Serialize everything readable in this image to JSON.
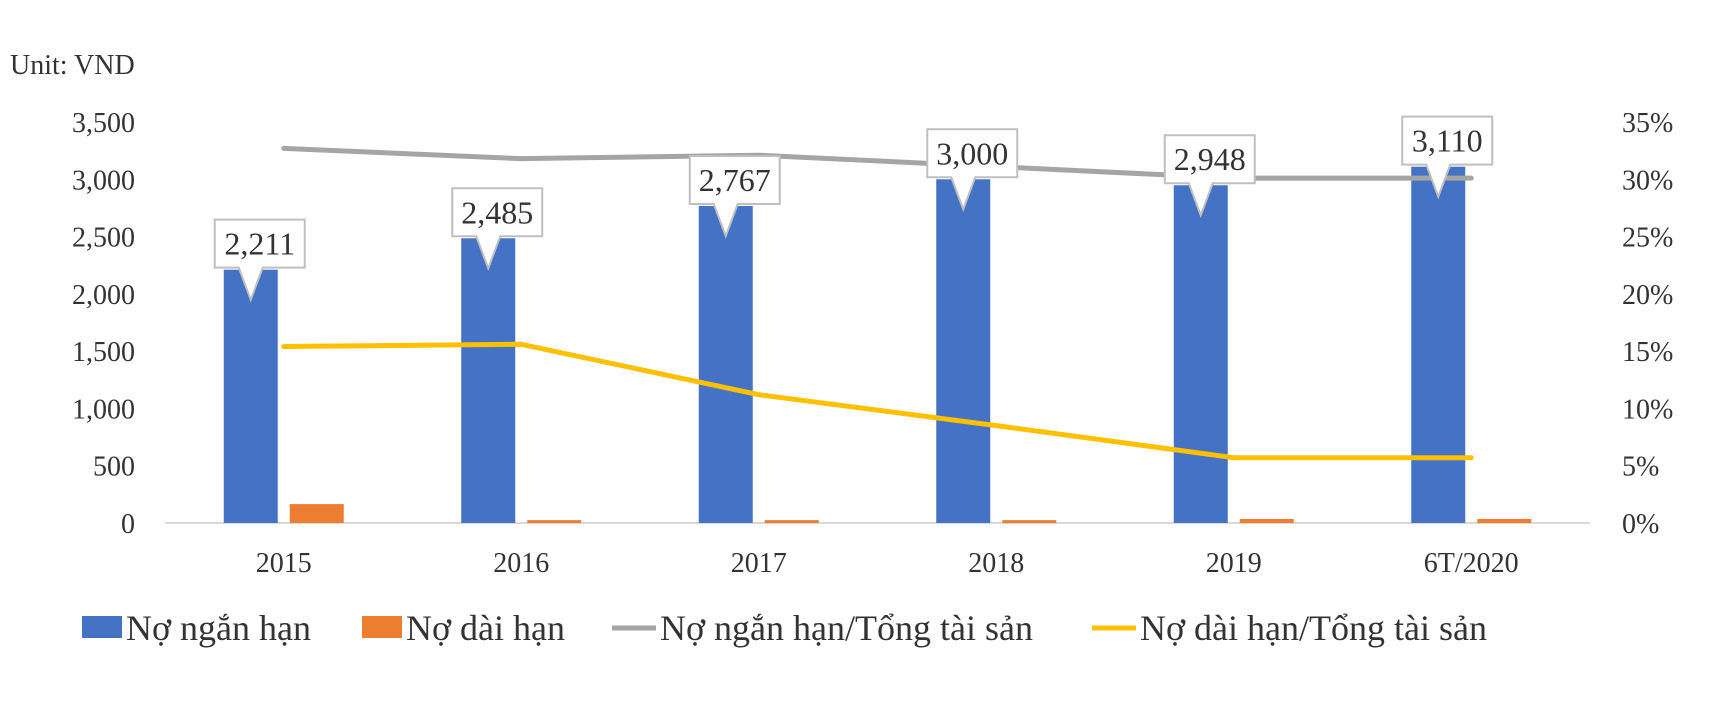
{
  "chart_data": {
    "type": "bar",
    "unit_label": "Unit: VND",
    "categories": [
      "2015",
      "2016",
      "2017",
      "2018",
      "2019",
      "6T/2020"
    ],
    "series": [
      {
        "name": "Nợ ngắn hạn",
        "kind": "bar",
        "axis": "left",
        "color": "#4472C4",
        "values": [
          2211,
          2485,
          2767,
          3000,
          2948,
          3110
        ],
        "labels": [
          "2,211",
          "2,485",
          "2,767",
          "3,000",
          "2,948",
          "3,110"
        ]
      },
      {
        "name": "Nợ dài hạn",
        "kind": "bar",
        "axis": "left",
        "color": "#ED7D31",
        "values": [
          165,
          25,
          25,
          25,
          35,
          35
        ]
      },
      {
        "name": "Nợ ngắn hạn/Tổng tài sản",
        "kind": "line",
        "axis": "right",
        "color": "#A5A5A5",
        "values": [
          0.327,
          0.318,
          0.321,
          0.311,
          0.301,
          0.301
        ]
      },
      {
        "name": "Nợ dài hạn/Tổng tài sản",
        "kind": "line",
        "axis": "right",
        "color": "#FFC000",
        "values": [
          0.154,
          0.156,
          0.112,
          0.085,
          0.057,
          0.057
        ]
      }
    ],
    "y_left": {
      "min": 0,
      "max": 3500,
      "ticks": [
        "0",
        "500",
        "1,000",
        "1,500",
        "2,000",
        "2,500",
        "3,000",
        "3,500"
      ]
    },
    "y_right": {
      "min": 0,
      "max": 0.35,
      "ticks": [
        "0%",
        "5%",
        "10%",
        "15%",
        "20%",
        "25%",
        "30%",
        "35%"
      ]
    },
    "grid": false,
    "legend_position": "bottom"
  }
}
